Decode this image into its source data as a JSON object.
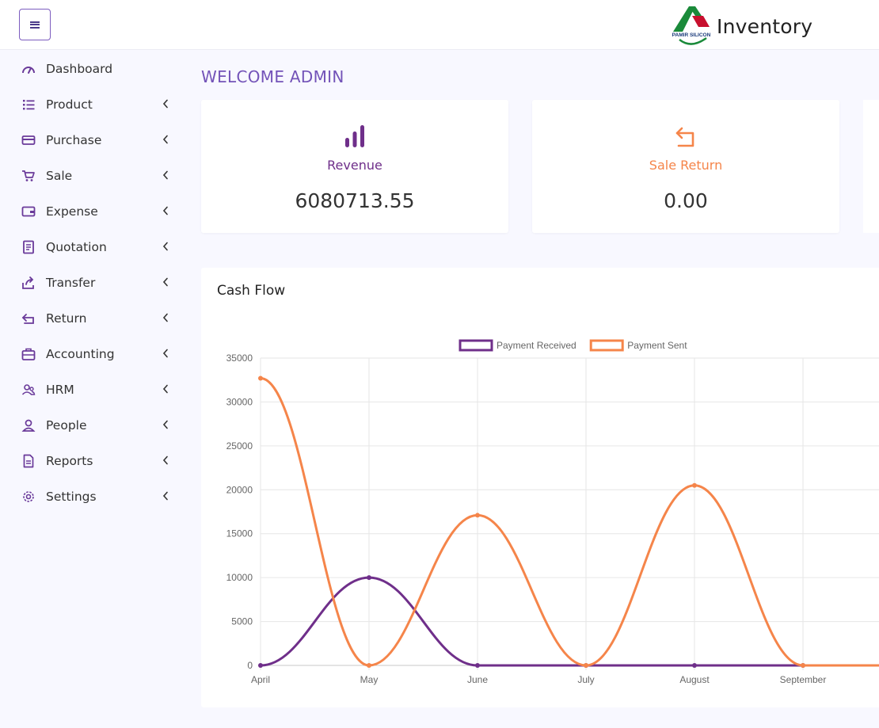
{
  "header": {
    "menu_icon": "hamburger-icon",
    "logo_text": "PAMIR SILICON",
    "app_name": "Inventory"
  },
  "sidebar": {
    "items": [
      {
        "label": "Dashboard",
        "icon": "gauge-icon",
        "has_submenu": false
      },
      {
        "label": "Product",
        "icon": "list-icon",
        "has_submenu": true
      },
      {
        "label": "Purchase",
        "icon": "credit-card-icon",
        "has_submenu": true
      },
      {
        "label": "Sale",
        "icon": "cart-icon",
        "has_submenu": true
      },
      {
        "label": "Expense",
        "icon": "wallet-icon",
        "has_submenu": true
      },
      {
        "label": "Quotation",
        "icon": "document-icon",
        "has_submenu": true
      },
      {
        "label": "Transfer",
        "icon": "share-icon",
        "has_submenu": true
      },
      {
        "label": "Return",
        "icon": "return-icon",
        "has_submenu": true
      },
      {
        "label": "Accounting",
        "icon": "briefcase-icon",
        "has_submenu": true
      },
      {
        "label": "HRM",
        "icon": "users-icon",
        "has_submenu": true
      },
      {
        "label": "People",
        "icon": "user-icon",
        "has_submenu": true
      },
      {
        "label": "Reports",
        "icon": "file-icon",
        "has_submenu": true
      },
      {
        "label": "Settings",
        "icon": "gear-icon",
        "has_submenu": true
      }
    ]
  },
  "main": {
    "welcome": "WELCOME ADMIN",
    "cards": [
      {
        "title": "Revenue",
        "value": "6080713.55",
        "icon": "bar-chart-icon",
        "color": "#6f2f8a"
      },
      {
        "title": "Sale Return",
        "value": "0.00",
        "icon": "return-icon",
        "color": "#f5854a"
      }
    ],
    "cash_flow": {
      "title": "Cash Flow"
    }
  },
  "colors": {
    "accent": "#7353b8",
    "payment_received": "#6f2f8a",
    "payment_sent": "#f5854a"
  },
  "chart_data": {
    "type": "line",
    "x": [
      "April",
      "May",
      "June",
      "July",
      "August",
      "September"
    ],
    "ylim": [
      0,
      35000
    ],
    "yticks": [
      "0",
      "5000",
      "10000",
      "15000",
      "20000",
      "25000",
      "30000",
      "35000"
    ],
    "legend_position": "top",
    "grid": true,
    "series": [
      {
        "name": "Payment Received",
        "values": [
          0,
          10000,
          0,
          0,
          0,
          0
        ],
        "color": "#6f2f8a"
      },
      {
        "name": "Payment Sent",
        "values": [
          32700,
          0,
          17100,
          0,
          20500,
          0
        ],
        "color": "#f5854a"
      }
    ]
  }
}
